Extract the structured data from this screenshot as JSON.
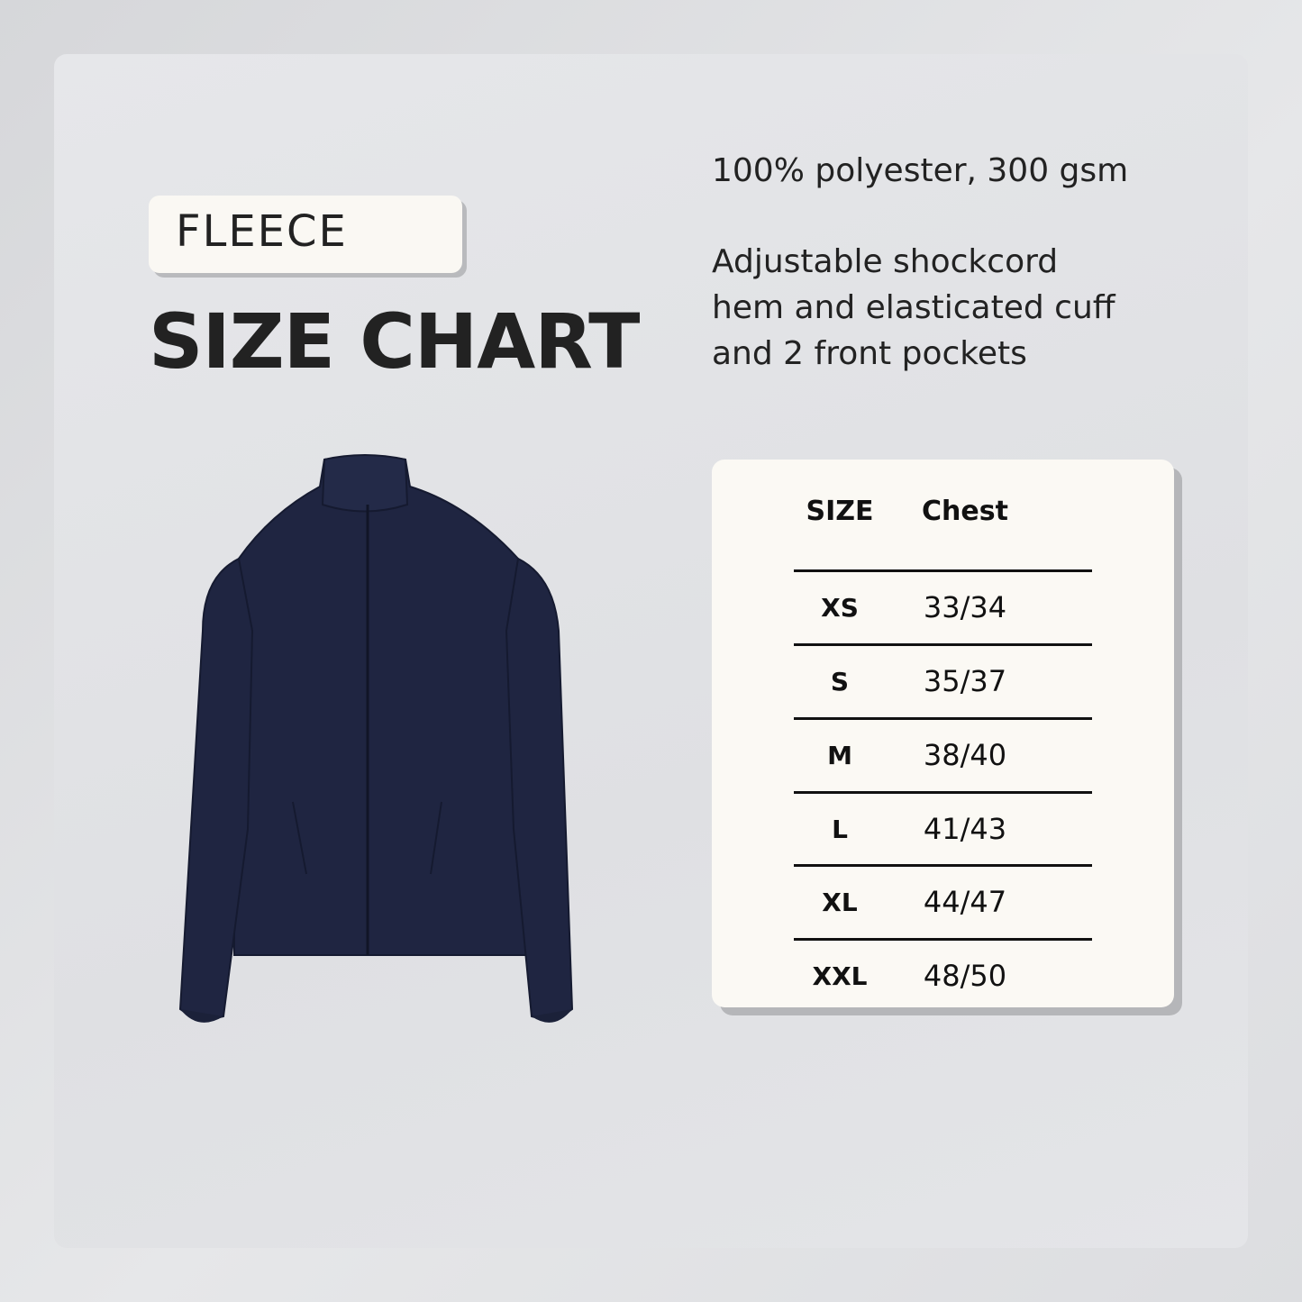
{
  "badge": "FLEECE",
  "title": "SIZE CHART",
  "material": "100% polyester, 300 gsm",
  "features": [
    "Adjustable shockcord",
    "hem and elasticated cuff",
    "and 2 front pockets"
  ],
  "product_image": "navy-fleece-jacket",
  "colors": {
    "jacket": "#1f2541",
    "card": "#fbf9f4"
  },
  "table": {
    "headers": [
      "SIZE",
      "Chest"
    ],
    "rows": [
      {
        "size": "XS",
        "chest": "33/34"
      },
      {
        "size": "S",
        "chest": "35/37"
      },
      {
        "size": "M",
        "chest": "38/40"
      },
      {
        "size": "L",
        "chest": "41/43"
      },
      {
        "size": "XL",
        "chest": "44/47"
      },
      {
        "size": "XXL",
        "chest": "48/50"
      }
    ]
  }
}
